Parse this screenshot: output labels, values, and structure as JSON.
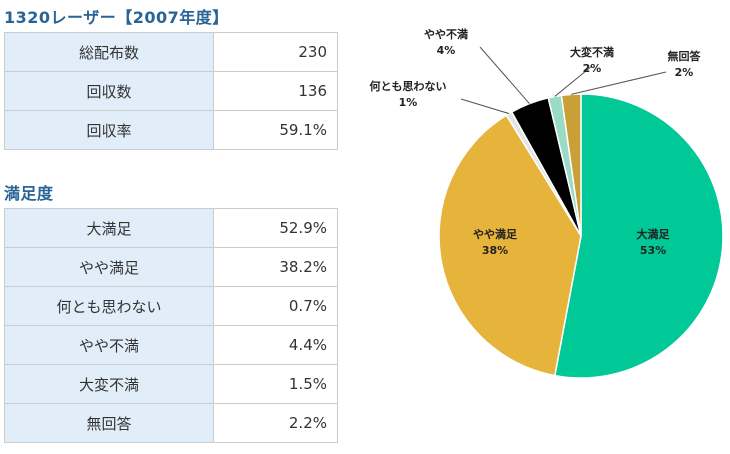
{
  "page_title": "1320レーザー【2007年度】",
  "summary": {
    "rows": [
      {
        "label": "総配布数",
        "value": "230"
      },
      {
        "label": "回収数",
        "value": "136"
      },
      {
        "label": "回収率",
        "value": "59.1%"
      }
    ]
  },
  "satisfaction": {
    "title": "満足度",
    "rows": [
      {
        "label": "大満足",
        "value": "52.9%"
      },
      {
        "label": "やや満足",
        "value": "38.2%"
      },
      {
        "label": "何とも思わない",
        "value": "0.7%"
      },
      {
        "label": "やや不満",
        "value": "4.4%"
      },
      {
        "label": "大変不満",
        "value": "1.5%"
      },
      {
        "label": "無回答",
        "value": "2.2%"
      }
    ]
  },
  "chart_data": {
    "type": "pie",
    "title": "",
    "slices": [
      {
        "name": "大満足",
        "value": 52.9,
        "label": "53%",
        "color": "#00c896"
      },
      {
        "name": "やや満足",
        "value": 38.2,
        "label": "38%",
        "color": "#e6b33b"
      },
      {
        "name": "何とも思わない",
        "value": 0.7,
        "label": "1%",
        "color": "#e4e4e4"
      },
      {
        "name": "やや不満",
        "value": 4.4,
        "label": "4%",
        "color": "#000000"
      },
      {
        "name": "大変不満",
        "value": 1.5,
        "label": "2%",
        "color": "#99dbc4"
      },
      {
        "name": "無回答",
        "value": 2.2,
        "label": "2%",
        "color": "#c9a038"
      }
    ]
  }
}
